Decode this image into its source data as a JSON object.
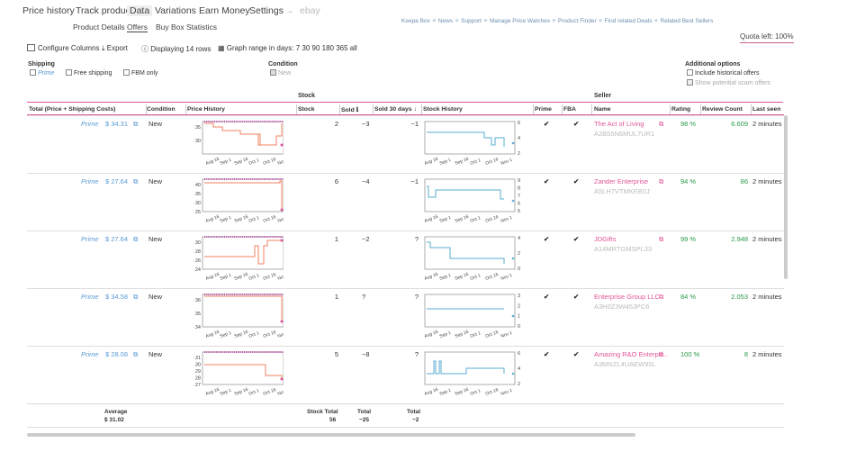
{
  "nav": {
    "tabs": [
      "Price history",
      "Track product",
      "Data",
      "Variations",
      "Earn Money",
      "Settings",
      "→",
      "ebay"
    ],
    "subtabs": [
      "Product Details",
      "Offers",
      "Buy Box Statistics"
    ],
    "links": "Keepa Box  ✧  News  ✧  Support  ✧  Manage Price Watches  ✧  Product Finder  ✧  Find related Deals  ✧  Related Best Sellers",
    "quota": "Quota left: 100%"
  },
  "toolbar": {
    "configure": "Configure Columns",
    "export": "Export",
    "displaying": "Displaying 14 rows",
    "graph_range_label": "Graph range in days:",
    "graph_ranges": "7  30  90  180  365  all"
  },
  "filters": {
    "shipping_title": "Shipping",
    "prime": "Prime",
    "free_shipping": "Free shipping",
    "fbm_only": "FBM only",
    "condition_title": "Condition",
    "condition_new": "New",
    "additional_title": "Additional options",
    "include_historical": "Include historical offers",
    "show_scam": "Show potential scam offers"
  },
  "groups": {
    "stock": "Stock",
    "seller": "Seller"
  },
  "columns": {
    "total": "Total (Price + Shipping Costs)",
    "condition": "Condition",
    "price_history": "Price History",
    "stock": "Stock",
    "sold": "Sold ℹ",
    "sold30": "Sold 30 days ↓",
    "stock_history": "Stock History",
    "prime": "Prime",
    "fba": "FBA",
    "name": "Name",
    "rating": "Rating",
    "review_count": "Review Count",
    "last_seen": "Last seen"
  },
  "xticks": [
    "Aug 16",
    "Sep 1",
    "Sep 16",
    "Oct 1",
    "Oct 16",
    "Nov 1"
  ],
  "rows": [
    {
      "prime": "Prime",
      "price": "$ 34.31",
      "condition": "New",
      "stock": "2",
      "sold": "~3",
      "sold30": "~1",
      "check_prime": "✔",
      "check_fba": "✔",
      "name": "The Act of Living",
      "seller_id": "A2B55N6MUL7UR1",
      "rating": "98 %",
      "reviews": "6.609",
      "last_seen": "2 minutes",
      "price_ticks": [
        "$ 35",
        "$ 30"
      ],
      "stock_ticks": [
        "6",
        "4",
        "2"
      ]
    },
    {
      "prime": "Prime",
      "price": "$ 27.64",
      "condition": "New",
      "stock": "6",
      "sold": "~4",
      "sold30": "~1",
      "check_prime": "✔",
      "check_fba": "✔",
      "name": "Zander Enterprise",
      "seller_id": "A5LH7VTMKEB0J",
      "rating": "94 %",
      "reviews": "86",
      "last_seen": "2 minutes",
      "price_ticks": [
        "$ 40",
        "$ 35",
        "$ 30",
        "$ 25"
      ],
      "stock_ticks": [
        "9",
        "8",
        "7",
        "6",
        "5"
      ]
    },
    {
      "prime": "Prime",
      "price": "$ 27.64",
      "condition": "New",
      "stock": "1",
      "sold": "~2",
      "sold30": "?",
      "check_prime": "✔",
      "check_fba": "✔",
      "name": "JDGifts",
      "seller_id": "A14MRTGMSPL33",
      "rating": "99 %",
      "reviews": "2.948",
      "last_seen": "2 minutes",
      "price_ticks": [
        "$ 30",
        "$ 28",
        "$ 26",
        "$ 24"
      ],
      "stock_ticks": [
        "4",
        "2",
        "0"
      ]
    },
    {
      "prime": "Prime",
      "price": "$ 34.58",
      "condition": "New",
      "stock": "1",
      "sold": "?",
      "sold30": "?",
      "check_prime": "✔",
      "check_fba": "✔",
      "name": "Enterprise Group LLC",
      "seller_id": "A3H0Z3W45JPC6",
      "rating": "84 %",
      "reviews": "2.053",
      "last_seen": "2 minutes",
      "price_ticks": [
        "$ 36",
        "$ 35",
        "$ 34"
      ],
      "stock_ticks": [
        "3",
        "2",
        "1",
        "0"
      ]
    },
    {
      "prime": "Prime",
      "price": "$ 28.08",
      "condition": "New",
      "stock": "5",
      "sold": "~8",
      "sold30": "?",
      "check_prime": "✔",
      "check_fba": "✔",
      "name": "Amazing R&O Enterpri...",
      "seller_id": "A3MNZL4UAEW95L",
      "rating": "100 %",
      "reviews": "8",
      "last_seen": "2 minutes",
      "price_ticks": [
        "$ 31",
        "$ 30",
        "$ 29",
        "$ 28",
        "$ 27"
      ],
      "stock_ticks": [
        "6",
        "4",
        "2"
      ]
    }
  ],
  "footer": {
    "average_label": "Average",
    "average_value": "$ 31.02",
    "stock_total_label": "Stock Total",
    "stock_total_value": "56",
    "total_label": "Total",
    "total_sold": "~25",
    "total30_label": "Total",
    "total30_sold": "~2"
  },
  "colors": {
    "price_line": "#f08060",
    "stock_line": "#5aaed0",
    "accent": "#e0559a"
  }
}
